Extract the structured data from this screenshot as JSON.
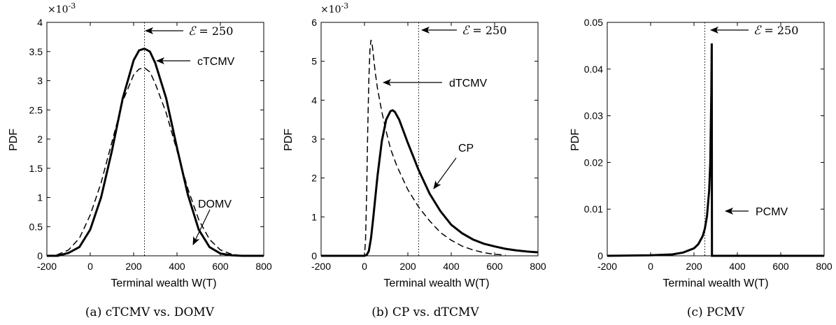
{
  "chart_data": [
    {
      "type": "line",
      "caption": "(a) cTCMV vs. DOMV",
      "xlabel": "Terminal wealth W(T)",
      "ylabel": "PDF",
      "y_multiplier": "×10",
      "y_multiplier_exp": "-3",
      "xlim": [
        -200,
        800
      ],
      "ylim": [
        0,
        4
      ],
      "xticks": [
        "-200",
        "0",
        "200",
        "400",
        "600",
        "800"
      ],
      "yticks": [
        "0",
        "0.5",
        "1",
        "1.5",
        "2",
        "2.5",
        "3",
        "3.5",
        "4"
      ],
      "vline_x": 250,
      "series": [
        {
          "name": "cTCMV",
          "style": "solid",
          "x": [
            -200,
            -150,
            -100,
            -50,
            0,
            50,
            100,
            150,
            200,
            225,
            250,
            275,
            300,
            350,
            400,
            450,
            500,
            550,
            600,
            650,
            700,
            800
          ],
          "y": [
            0.0,
            0.0,
            0.05,
            0.15,
            0.45,
            1.0,
            1.8,
            2.7,
            3.35,
            3.52,
            3.55,
            3.5,
            3.3,
            2.7,
            1.85,
            1.05,
            0.45,
            0.15,
            0.04,
            0.01,
            0.0,
            0.0
          ]
        },
        {
          "name": "DOMV",
          "style": "dashed",
          "x": [
            -200,
            -150,
            -100,
            -50,
            0,
            50,
            100,
            150,
            200,
            225,
            250,
            275,
            300,
            350,
            400,
            450,
            500,
            550,
            600,
            650,
            700,
            800
          ],
          "y": [
            0.0,
            0.02,
            0.1,
            0.3,
            0.7,
            1.25,
            1.95,
            2.65,
            3.1,
            3.2,
            3.22,
            3.15,
            2.95,
            2.45,
            1.8,
            1.15,
            0.62,
            0.28,
            0.1,
            0.03,
            0.0,
            0.0
          ]
        }
      ],
      "annotations": [
        {
          "label": "cTCMV",
          "x": 370,
          "y": 3.3,
          "arrow_to": [
            290,
            3.3
          ]
        },
        {
          "label": "DOMV",
          "x": 500,
          "y": 0.85,
          "arrow_to": [
            535,
            0.18
          ]
        }
      ],
      "eps_label": {
        "sym": "ℰ",
        "rest": " = 250"
      }
    },
    {
      "type": "line",
      "caption": "(b) CP vs. dTCMV",
      "xlabel": "Terminal wealth W(T)",
      "ylabel": "PDF",
      "y_multiplier": "×10",
      "y_multiplier_exp": "-3",
      "xlim": [
        -200,
        800
      ],
      "ylim": [
        0,
        6
      ],
      "xticks": [
        "-200",
        "0",
        "200",
        "400",
        "600",
        "800"
      ],
      "yticks": [
        "0",
        "1",
        "2",
        "3",
        "4",
        "5",
        "6"
      ],
      "vline_x": 250,
      "series": [
        {
          "name": "CP",
          "style": "solid",
          "x": [
            -200,
            0,
            10,
            20,
            30,
            40,
            50,
            60,
            80,
            100,
            120,
            130,
            140,
            160,
            180,
            200,
            250,
            300,
            350,
            400,
            450,
            500,
            550,
            600,
            650,
            700,
            750,
            800
          ],
          "y": [
            0.0,
            0.0,
            0.02,
            0.12,
            0.45,
            0.95,
            1.5,
            2.05,
            2.95,
            3.5,
            3.72,
            3.74,
            3.7,
            3.5,
            3.2,
            2.9,
            2.2,
            1.6,
            1.15,
            0.8,
            0.58,
            0.42,
            0.31,
            0.24,
            0.18,
            0.14,
            0.11,
            0.09
          ]
        },
        {
          "name": "dTCMV",
          "style": "dashed",
          "x": [
            -200,
            0,
            5,
            10,
            15,
            20,
            25,
            30,
            35,
            40,
            50,
            60,
            80,
            100,
            120,
            150,
            200,
            250,
            300,
            350,
            400,
            450,
            500,
            550,
            600,
            650
          ],
          "y": [
            0.0,
            0.0,
            0.4,
            1.6,
            3.2,
            4.5,
            5.3,
            5.55,
            5.45,
            5.2,
            4.7,
            4.3,
            3.7,
            3.2,
            2.75,
            2.3,
            1.7,
            1.25,
            0.9,
            0.6,
            0.4,
            0.25,
            0.15,
            0.08,
            0.04,
            0.02
          ]
        }
      ],
      "annotations": [
        {
          "label": "dTCMV",
          "x": 245,
          "y": 4.4,
          "arrow_to": [
            80,
            4.4
          ]
        },
        {
          "label": "CP",
          "x": 385,
          "y": 2.8,
          "arrow_to": [
            310,
            1.6
          ]
        }
      ],
      "eps_label": {
        "sym": "ℰ",
        "rest": " = 250"
      }
    },
    {
      "type": "line",
      "caption": "(c) PCMV",
      "xlabel": "Terminal wealth W(T)",
      "ylabel": "PDF",
      "xlim": [
        -200,
        800
      ],
      "ylim": [
        0,
        0.05
      ],
      "xticks": [
        "-200",
        "0",
        "200",
        "400",
        "600",
        "800"
      ],
      "yticks": [
        "0",
        "0.01",
        "0.02",
        "0.03",
        "0.04",
        "0.05"
      ],
      "vline_x": 250,
      "series": [
        {
          "name": "PCMV",
          "style": "solid",
          "x": [
            -200,
            0,
            100,
            150,
            200,
            220,
            240,
            250,
            260,
            270,
            275,
            280,
            282,
            283,
            800
          ],
          "y": [
            0.0,
            0.0001,
            0.0003,
            0.0007,
            0.0016,
            0.0025,
            0.0042,
            0.0058,
            0.0085,
            0.014,
            0.02,
            0.035,
            0.0455,
            0.0,
            0.0
          ]
        }
      ],
      "annotations": [
        {
          "label": "PCMV",
          "x": 400,
          "y": 0.0095,
          "arrow_to": [
            292,
            0.0095
          ]
        }
      ],
      "eps_label": {
        "sym": "ℰ",
        "rest": " = 250"
      }
    }
  ]
}
